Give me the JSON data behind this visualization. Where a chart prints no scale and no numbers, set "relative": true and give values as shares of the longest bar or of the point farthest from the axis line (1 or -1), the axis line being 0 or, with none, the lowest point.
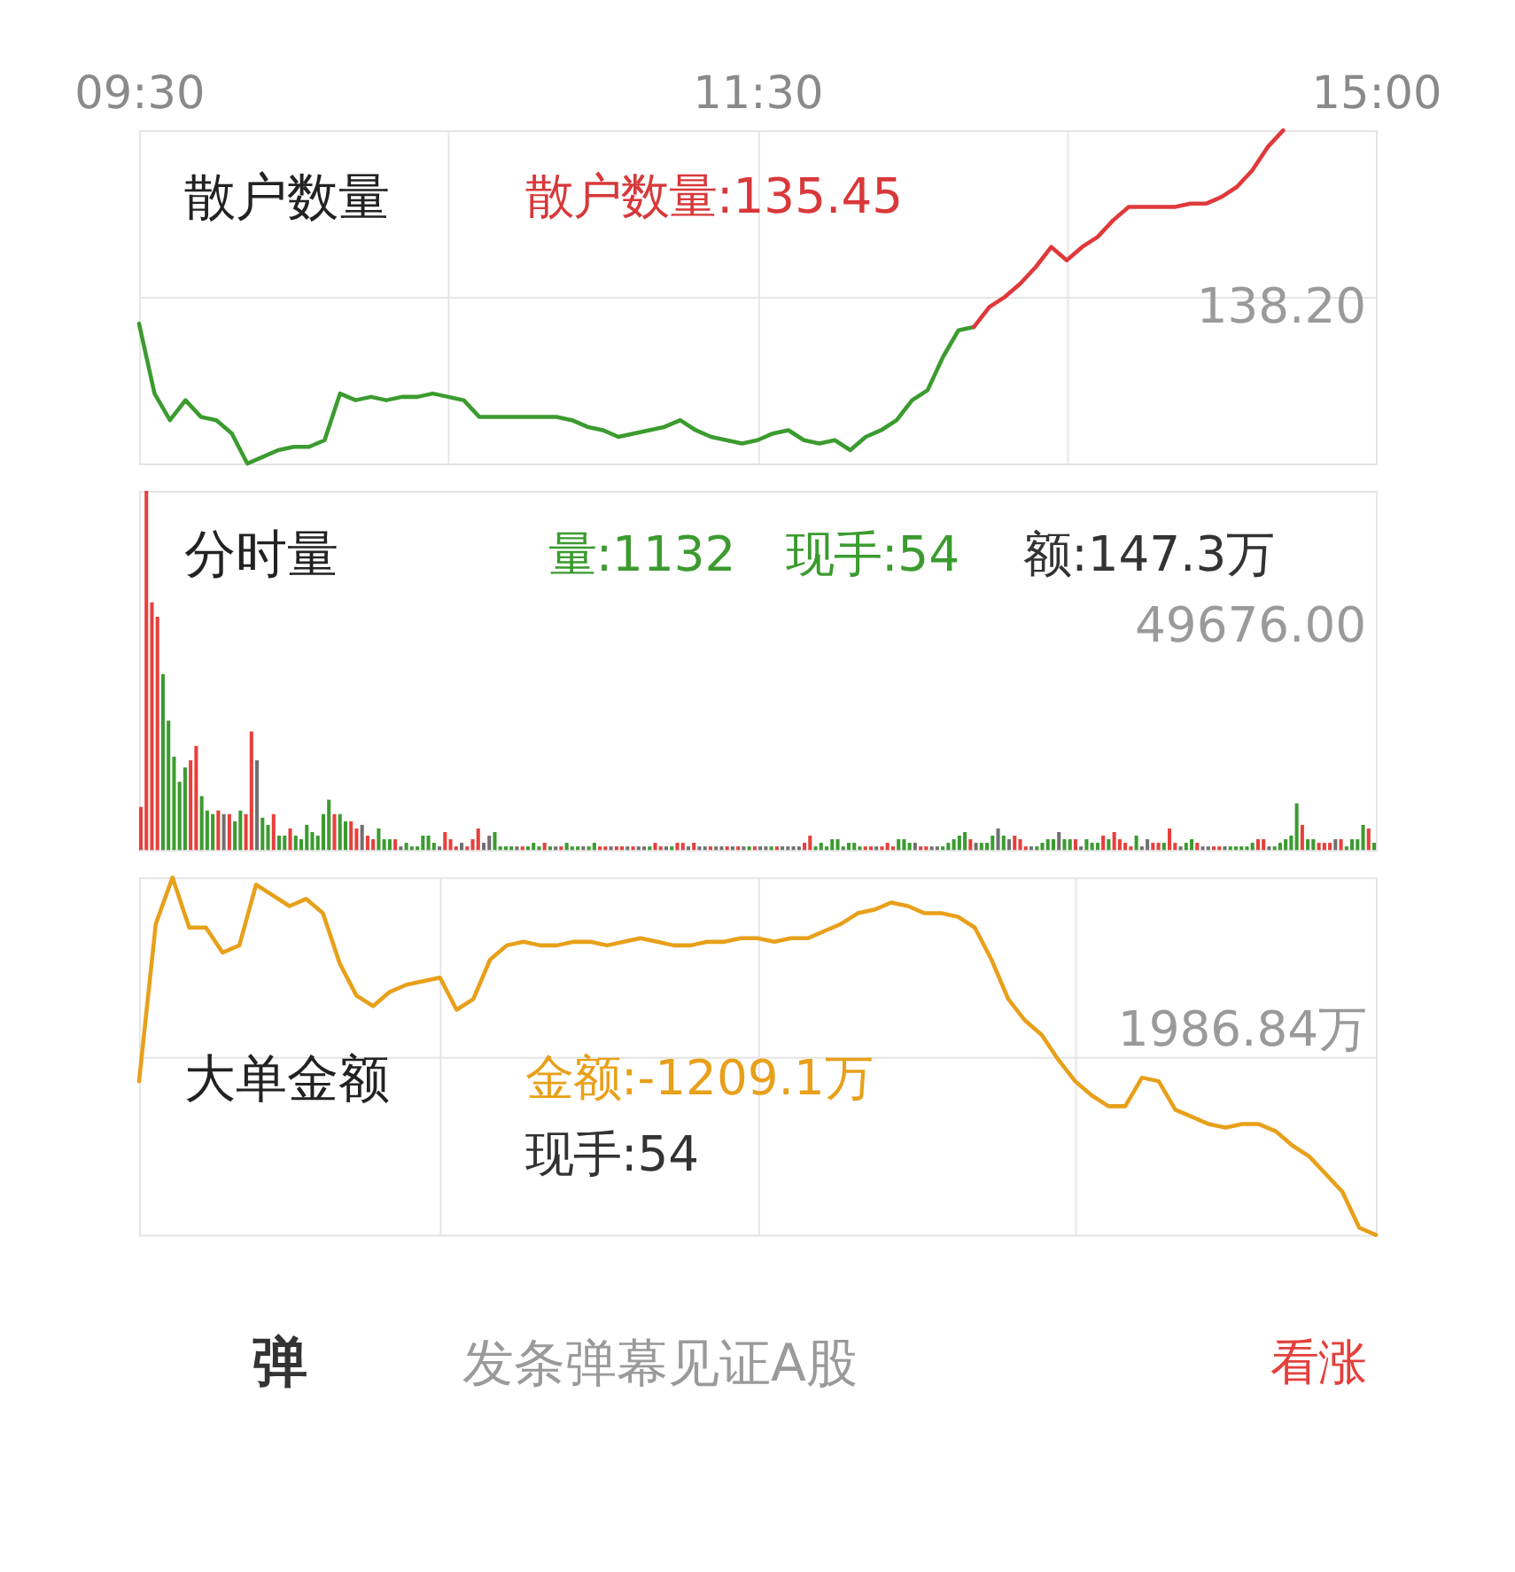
{
  "chart_data": [
    {
      "type": "line",
      "title": "散户数量",
      "annotations": [
        "散户数量:135.45",
        "138.20"
      ],
      "relative": true,
      "grid": true,
      "tick_labels": "x",
      "categories": [
        "09:30",
        null,
        null,
        null,
        null,
        null,
        null,
        null,
        null,
        null,
        null,
        null,
        null,
        null,
        null,
        null,
        null,
        null,
        null,
        null,
        null,
        null,
        null,
        null,
        null,
        null,
        null,
        null,
        null,
        null,
        null,
        null,
        null,
        null,
        null,
        null,
        null,
        null,
        null,
        null,
        "11:30",
        null,
        null,
        null,
        null,
        null,
        null,
        null,
        null,
        null,
        null,
        null,
        null,
        null,
        null,
        null,
        null,
        null,
        null,
        null,
        null,
        null,
        null,
        null,
        null,
        null,
        null,
        null,
        null,
        null,
        null,
        null,
        null,
        null,
        null,
        null,
        null,
        null,
        null,
        null,
        "15:00"
      ],
      "series": [
        {
          "color": "#3b9b2f",
          "values": [
            0.42,
            0.21,
            0.13,
            0.19,
            0.14,
            0.13,
            0.09,
            0,
            0.02,
            0.04,
            0.05,
            0.05,
            0.07,
            0.21,
            0.19,
            0.2,
            0.19,
            0.2,
            0.2,
            0.21,
            0.2,
            0.19,
            0.14,
            0.14,
            0.14,
            0.14,
            0.14,
            0.14,
            0.13,
            0.11,
            0.1,
            0.08,
            0.09,
            0.1,
            0.11,
            0.13,
            0.1,
            0.08,
            0.07,
            0.06,
            0.07,
            0.09,
            0.1,
            0.07,
            0.06,
            0.07,
            0.04,
            0.08,
            0.1,
            0.13,
            0.19,
            0.22,
            0.32,
            0.4,
            0.41,
            null,
            null,
            null,
            null,
            null,
            null,
            null,
            null,
            null,
            null,
            null,
            null,
            null,
            null,
            null,
            null,
            null,
            null,
            null,
            null,
            null,
            null,
            null,
            null,
            null,
            null
          ]
        },
        {
          "color": "#e0393b",
          "values": [
            null,
            null,
            null,
            null,
            null,
            null,
            null,
            null,
            null,
            null,
            null,
            null,
            null,
            null,
            null,
            null,
            null,
            null,
            null,
            null,
            null,
            null,
            null,
            null,
            null,
            null,
            null,
            null,
            null,
            null,
            null,
            null,
            null,
            null,
            null,
            null,
            null,
            null,
            null,
            null,
            null,
            null,
            null,
            null,
            null,
            null,
            null,
            null,
            null,
            null,
            null,
            null,
            null,
            null,
            0.41,
            0.47,
            0.5,
            0.54,
            0.59,
            0.65,
            0.61,
            0.65,
            0.68,
            0.73,
            0.77,
            0.77,
            0.77,
            0.77,
            0.78,
            0.78,
            0.8,
            0.83,
            0.88,
            0.95,
            1,
            null,
            null,
            null,
            null,
            null,
            null
          ]
        }
      ]
    },
    {
      "type": "bar",
      "title": "分时量",
      "annotations": [
        "量:1132",
        "现手:54",
        "额:147.3万",
        "49676.00"
      ],
      "relative": true,
      "tick_labels": false,
      "categories": [
        null,
        null,
        null,
        null,
        null,
        null,
        null,
        null,
        null,
        null,
        null,
        null,
        null,
        null,
        null,
        null,
        null,
        null,
        null,
        null,
        null,
        null,
        null,
        null,
        null,
        null,
        null,
        null,
        null,
        null,
        null,
        null,
        null,
        null,
        null,
        null,
        null,
        null,
        null,
        null,
        null,
        null,
        null,
        null,
        null,
        null,
        null,
        null,
        null,
        null,
        null,
        null,
        null,
        null,
        null,
        null,
        null,
        null,
        null,
        null,
        null,
        null,
        null,
        null,
        null,
        null,
        null,
        null,
        null,
        null,
        null,
        null,
        null,
        null,
        null,
        null,
        null,
        null,
        null,
        null,
        null,
        null,
        null,
        null,
        null,
        null,
        null,
        null,
        null,
        null,
        null,
        null,
        null,
        null,
        null,
        null,
        null,
        null,
        null,
        null,
        null,
        null,
        null,
        null,
        null,
        null,
        null,
        null,
        null,
        null,
        null,
        null,
        null,
        null,
        null,
        null,
        null,
        null,
        null,
        null,
        null,
        null,
        null,
        null,
        null,
        null,
        null,
        null,
        null,
        null,
        null,
        null,
        null,
        null,
        null,
        null,
        null,
        null,
        null,
        null,
        null,
        null,
        null,
        null,
        null,
        null,
        null,
        null,
        null,
        null,
        null,
        null,
        null,
        null,
        null,
        null,
        null,
        null,
        null,
        null,
        null,
        null,
        null,
        null,
        null,
        null,
        null,
        null,
        null,
        null,
        null,
        null,
        null,
        null,
        null,
        null,
        null,
        null,
        null,
        null,
        null,
        null,
        null,
        null,
        null,
        null,
        null,
        null,
        null,
        null,
        null,
        null,
        null,
        null,
        null,
        null,
        null,
        null,
        null,
        null,
        null,
        null,
        null,
        null,
        null,
        null,
        null,
        null,
        null,
        null,
        null,
        null,
        null,
        null,
        null,
        null,
        null,
        null,
        null,
        null,
        null,
        null,
        null,
        null
      ],
      "values": [
        0.12,
        1,
        0.69,
        0.65,
        0.49,
        0.36,
        0.26,
        0.19,
        0.23,
        0.25,
        0.29,
        0.15,
        0.11,
        0.1,
        0.11,
        0.1,
        0.1,
        0.08,
        0.11,
        0.1,
        0.33,
        0.25,
        0.09,
        0.07,
        0.1,
        0.04,
        0.04,
        0.06,
        0.04,
        0.03,
        0.07,
        0.05,
        0.04,
        0.1,
        0.14,
        0.1,
        0.1,
        0.08,
        0.08,
        0.06,
        0.07,
        0.04,
        0.03,
        0.06,
        0.03,
        0.03,
        0.03,
        0.01,
        0.02,
        0.01,
        0.01,
        0.04,
        0.04,
        0.02,
        0.01,
        0.05,
        0.03,
        0.01,
        0.02,
        0.01,
        0.03,
        0.06,
        0.02,
        0.04,
        0.05,
        0.01,
        0.01,
        0.01,
        0.01,
        0.01,
        0.01,
        0.02,
        0.01,
        0.02,
        0.01,
        0.01,
        0.01,
        0.02,
        0.01,
        0.01,
        0.01,
        0.01,
        0.02,
        0.01,
        0.01,
        0.01,
        0.01,
        0.01,
        0.01,
        0.01,
        0.01,
        0.01,
        0.01,
        0.02,
        0.01,
        0.01,
        0.01,
        0.02,
        0.02,
        0.01,
        0.02,
        0.01,
        0.01,
        0.01,
        0.01,
        0.01,
        0.01,
        0.01,
        0.01,
        0.01,
        0.01,
        0.01,
        0.01,
        0.01,
        0.01,
        0.01,
        0.01,
        0.01,
        0.01,
        0.01,
        0.02,
        0.04,
        0.01,
        0.02,
        0.01,
        0.03,
        0.03,
        0.01,
        0.02,
        0.02,
        0.01,
        0.01,
        0.01,
        0.01,
        0.01,
        0.02,
        0.01,
        0.03,
        0.03,
        0.02,
        0.02,
        0.01,
        0.01,
        0.01,
        0.01,
        0.01,
        0.02,
        0.03,
        0.04,
        0.05,
        0.03,
        0.02,
        0.02,
        0.02,
        0.04,
        0.06,
        0.04,
        0.03,
        0.04,
        0.03,
        0.01,
        0.01,
        0.01,
        0.02,
        0.03,
        0.03,
        0.05,
        0.03,
        0.03,
        0.03,
        0.01,
        0.03,
        0.02,
        0.02,
        0.04,
        0.03,
        0.05,
        0.03,
        0.02,
        0.01,
        0.04,
        0.01,
        0.03,
        0.02,
        0.02,
        0.02,
        0.06,
        0.02,
        0.01,
        0.02,
        0.03,
        0.02,
        0.01,
        0.01,
        0.01,
        0.01,
        0.01,
        0.01,
        0.01,
        0.01,
        0.01,
        0.02,
        0.03,
        0.03,
        0.01,
        0.01,
        0.02,
        0.03,
        0.04,
        0.13,
        0.07,
        0.03,
        0.03,
        0.02,
        0.02,
        0.02,
        0.03,
        0.03,
        0.01,
        0.03,
        0.03,
        0.07,
        0.06,
        0.02
      ],
      "colors": [
        "#e5403d",
        "#e5403d",
        "#e5403d",
        "#e5403d",
        "#3b9b2f",
        "#3b9b2f",
        "#3b9b2f",
        "#3b9b2f",
        "#3b9b2f",
        "#e5403d",
        "#e5403d",
        "#3b9b2f",
        "#3b9b2f",
        "#3b9b2f",
        "#e5403d",
        "#707070",
        "#e5403d",
        "#3b9b2f",
        "#3b9b2f",
        "#e5403d",
        "#e5403d",
        "#707070",
        "#3b9b2f",
        "#3b9b2f",
        "#e5403d",
        "#3b9b2f",
        "#3b9b2f",
        "#e5403d",
        "#3b9b2f",
        "#3b9b2f",
        "#3b9b2f",
        "#3b9b2f",
        "#3b9b2f",
        "#3b9b2f",
        "#3b9b2f",
        "#e5403d",
        "#3b9b2f",
        "#3b9b2f",
        "#e5403d",
        "#e5403d",
        "#707070",
        "#e5403d",
        "#e5403d",
        "#3b9b2f",
        "#3b9b2f",
        "#3b9b2f",
        "#e5403d",
        "#707070",
        "#3b9b2f",
        "#3b9b2f",
        "#3b9b2f",
        "#3b9b2f",
        "#3b9b2f",
        "#3b9b2f",
        "#707070",
        "#e5403d",
        "#e5403d",
        "#e5403d",
        "#707070",
        "#e5403d",
        "#e5403d",
        "#e5403d",
        "#707070",
        "#707070",
        "#3b9b2f",
        "#3b9b2f",
        "#3b9b2f",
        "#3b9b2f",
        "#707070",
        "#e5403d",
        "#3b9b2f",
        "#3b9b2f",
        "#3b9b2f",
        "#e5403d",
        "#3b9b2f",
        "#707070",
        "#e5403d",
        "#3b9b2f",
        "#3b9b2f",
        "#3b9b2f",
        "#707070",
        "#3b9b2f",
        "#3b9b2f",
        "#e5403d",
        "#e5403d",
        "#707070",
        "#e5403d",
        "#e5403d",
        "#707070",
        "#e5403d",
        "#707070",
        "#707070",
        "#3b9b2f",
        "#e5403d",
        "#e5403d",
        "#707070",
        "#3b9b2f",
        "#e5403d",
        "#e5403d",
        "#707070",
        "#e5403d",
        "#707070",
        "#707070",
        "#e5403d",
        "#707070",
        "#707070",
        "#e5403d",
        "#707070",
        "#e5403d",
        "#707070",
        "#3b9b2f",
        "#e5403d",
        "#707070",
        "#707070",
        "#3b9b2f",
        "#e5403d",
        "#707070",
        "#707070",
        "#707070",
        "#707070",
        "#e5403d",
        "#e5403d",
        "#3b9b2f",
        "#3b9b2f",
        "#3b9b2f",
        "#3b9b2f",
        "#3b9b2f",
        "#3b9b2f",
        "#3b9b2f",
        "#3b9b2f",
        "#3b9b2f",
        "#e5403d",
        "#e5403d",
        "#707070",
        "#e5403d",
        "#e5403d",
        "#e5403d",
        "#3b9b2f",
        "#3b9b2f",
        "#3b9b2f",
        "#707070",
        "#e5403d",
        "#e5403d",
        "#707070",
        "#707070",
        "#3b9b2f",
        "#3b9b2f",
        "#3b9b2f",
        "#3b9b2f",
        "#3b9b2f",
        "#e5403d",
        "#707070",
        "#3b9b2f",
        "#3b9b2f",
        "#3b9b2f",
        "#707070",
        "#3b9b2f",
        "#707070",
        "#e5403d",
        "#e5403d",
        "#e5403d",
        "#707070",
        "#3b9b2f",
        "#3b9b2f",
        "#3b9b2f",
        "#3b9b2f",
        "#707070",
        "#3b9b2f",
        "#3b9b2f",
        "#e5403d",
        "#707070",
        "#3b9b2f",
        "#3b9b2f",
        "#3b9b2f",
        "#e5403d",
        "#3b9b2f",
        "#e5403d",
        "#e5403d",
        "#e5403d",
        "#e5403d",
        "#3b9b2f",
        "#707070",
        "#707070",
        "#e5403d",
        "#e5403d",
        "#3b9b2f",
        "#e5403d",
        "#e5403d",
        "#707070",
        "#3b9b2f",
        "#3b9b2f",
        "#e5403d",
        "#707070",
        "#707070",
        "#e5403d",
        "#e5403d",
        "#707070",
        "#3b9b2f",
        "#3b9b2f",
        "#3b9b2f",
        "#3b9b2f",
        "#3b9b2f",
        "#e5403d",
        "#e5403d",
        "#707070",
        "#3b9b2f",
        "#3b9b2f",
        "#3b9b2f",
        "#3b9b2f",
        "#3b9b2f",
        "#e5403d",
        "#3b9b2f",
        "#3b9b2f",
        "#e5403d",
        "#e5403d",
        "#e5403d",
        "#707070",
        "#e5403d",
        "#3b9b2f",
        "#3b9b2f",
        "#3b9b2f",
        "#3b9b2f",
        "#e5403d",
        "#3b9b2f"
      ]
    },
    {
      "type": "line",
      "title": "大单金额",
      "annotations": [
        "金额:-1209.1万",
        "现手:54",
        "1986.84万",
        "弹",
        "发条弹幕见证A股",
        "看涨"
      ],
      "relative": true,
      "grid": true,
      "tick_labels": false,
      "categories": [
        null,
        null,
        null,
        null,
        null,
        null,
        null,
        null,
        null,
        null,
        null,
        null,
        null,
        null,
        null,
        null,
        null,
        null,
        null,
        null,
        null,
        null,
        null,
        null,
        null,
        null,
        null,
        null,
        null,
        null,
        null,
        null,
        null,
        null,
        null,
        null,
        null,
        null,
        null,
        null,
        null,
        null,
        null,
        null,
        null,
        null,
        null,
        null,
        null,
        null,
        null,
        null,
        null,
        null,
        null,
        null,
        null,
        null,
        null,
        null,
        null,
        null,
        null,
        null,
        null,
        null,
        null,
        null,
        null,
        null,
        null,
        null,
        null,
        null,
        null
      ],
      "series": [
        {
          "color": "#e8a01a",
          "values": [
            0.43,
            0.87,
            1,
            0.86,
            0.86,
            0.79,
            0.81,
            0.98,
            0.95,
            0.92,
            0.94,
            0.9,
            0.76,
            0.67,
            0.64,
            0.68,
            0.7,
            0.71,
            0.72,
            0.63,
            0.66,
            0.77,
            0.81,
            0.82,
            0.81,
            0.81,
            0.82,
            0.82,
            0.81,
            0.82,
            0.83,
            0.82,
            0.81,
            0.81,
            0.82,
            0.82,
            0.83,
            0.83,
            0.82,
            0.83,
            0.83,
            0.85,
            0.87,
            0.9,
            0.91,
            0.93,
            0.92,
            0.9,
            0.9,
            0.89,
            0.86,
            0.77,
            0.66,
            0.6,
            0.56,
            0.49,
            0.43,
            0.39,
            0.36,
            0.36,
            0.44,
            0.43,
            0.35,
            0.33,
            0.31,
            0.3,
            0.31,
            0.31,
            0.29,
            0.25,
            0.22,
            0.17,
            0.12,
            0.02,
            0
          ]
        }
      ]
    }
  ]
}
